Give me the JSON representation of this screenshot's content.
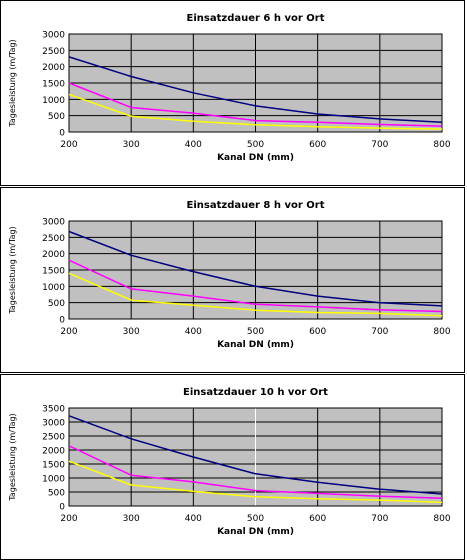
{
  "chart_data": [
    {
      "type": "line",
      "title": "Einsatzdauer 6 h vor Ort",
      "xlabel": "Kanal DN (mm)",
      "ylabel": "Tagesleistung (m/Tag)",
      "x": [
        200,
        300,
        400,
        500,
        600,
        700,
        800
      ],
      "xlim": [
        200,
        800
      ],
      "ylim": [
        0,
        3000
      ],
      "yticks": [
        0,
        500,
        1000,
        1500,
        2000,
        2500,
        3000
      ],
      "ytick_labels": [
        "0",
        "500",
        "1000",
        "1500",
        "2000",
        "2500",
        "3000"
      ],
      "xtick_labels": [
        "200",
        "300",
        "400",
        "500",
        "600",
        "700",
        "800"
      ],
      "grid": true,
      "series": [
        {
          "color": "#000080",
          "values": [
            2300,
            1700,
            1200,
            800,
            550,
            400,
            300
          ]
        },
        {
          "color": "#ff00ff",
          "values": [
            1500,
            750,
            580,
            350,
            300,
            230,
            180
          ]
        },
        {
          "color": "#ffff00",
          "values": [
            1150,
            480,
            330,
            220,
            160,
            120,
            90
          ]
        }
      ]
    },
    {
      "type": "line",
      "title": "Einsatzdauer 8 h vor Ort",
      "xlabel": "Kanal DN (mm)",
      "ylabel": "Tagesleistung (m/Tag)",
      "x": [
        200,
        300,
        400,
        500,
        600,
        700,
        800
      ],
      "xlim": [
        200,
        800
      ],
      "ylim": [
        0,
        3000
      ],
      "yticks": [
        0,
        500,
        1000,
        1500,
        2000,
        2500,
        3000
      ],
      "ytick_labels": [
        "0",
        "500",
        "1000",
        "1500",
        "2000",
        "2500",
        "3000"
      ],
      "xtick_labels": [
        "200",
        "300",
        "400",
        "500",
        "600",
        "700",
        "800"
      ],
      "grid": true,
      "series": [
        {
          "color": "#000080",
          "values": [
            2680,
            1950,
            1450,
            1000,
            700,
            500,
            400
          ]
        },
        {
          "color": "#ff00ff",
          "values": [
            1800,
            920,
            700,
            450,
            370,
            280,
            230
          ]
        },
        {
          "color": "#ffff00",
          "values": [
            1400,
            580,
            420,
            270,
            200,
            170,
            100
          ]
        }
      ]
    },
    {
      "type": "line",
      "title": "Einsatzdauer 10 h vor Ort",
      "xlabel": "Kanal DN (mm)",
      "ylabel": "Tagesleistung (m/Tag)",
      "x": [
        200,
        300,
        400,
        500,
        600,
        700,
        800
      ],
      "xlim": [
        200,
        800
      ],
      "ylim": [
        0,
        3500
      ],
      "yticks": [
        0,
        500,
        1000,
        1500,
        2000,
        2500,
        3000,
        3500
      ],
      "ytick_labels": [
        "0",
        "500",
        "1000",
        "1500",
        "2000",
        "2500",
        "3000",
        "3500"
      ],
      "xtick_labels": [
        "200",
        "300",
        "400",
        "500",
        "600",
        "700",
        "800"
      ],
      "grid": true,
      "series": [
        {
          "color": "#000080",
          "values": [
            3220,
            2400,
            1750,
            1150,
            850,
            600,
            430
          ]
        },
        {
          "color": "#ff00ff",
          "values": [
            2150,
            1100,
            860,
            550,
            450,
            350,
            280
          ]
        },
        {
          "color": "#ffff00",
          "values": [
            1600,
            750,
            520,
            330,
            260,
            210,
            130
          ]
        }
      ]
    }
  ]
}
